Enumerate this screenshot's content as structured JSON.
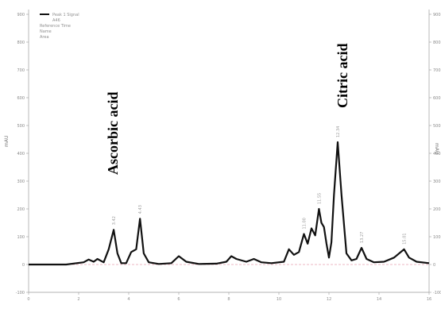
{
  "chart_data": {
    "type": "line",
    "ylabel_left": "mAU",
    "ylabel_right": "mAU",
    "xlim": [
      0,
      16
    ],
    "ylim": [
      -100,
      900
    ],
    "x_ticks": [
      "0",
      "2",
      "4",
      "6",
      "8",
      "10",
      "12",
      "14",
      "16"
    ],
    "y_ticks": [
      "-100",
      "0",
      "100",
      "200",
      "300",
      "400",
      "500",
      "600",
      "700",
      "800",
      "900"
    ],
    "legend": {
      "position": "top-left",
      "entries": [
        "Peak 1 Signal",
        "A46",
        "Reference Time",
        "Name",
        "Area"
      ]
    },
    "annotations": [
      {
        "text": "Ascorbic acid",
        "x": 3.4,
        "y": 510
      },
      {
        "text": "Citric acid",
        "x": 12.5,
        "y": 680
      }
    ],
    "series": [
      {
        "color": "#111111",
        "x": [
          0,
          1.5,
          2.2,
          2.4,
          2.6,
          2.75,
          3.0,
          3.2,
          3.4,
          3.55,
          3.7,
          3.9,
          4.1,
          4.3,
          4.45,
          4.6,
          4.8,
          5.2,
          5.7,
          6.0,
          6.3,
          6.8,
          7.5,
          7.9,
          8.1,
          8.3,
          8.7,
          9.0,
          9.3,
          9.7,
          10.2,
          10.4,
          10.6,
          10.8,
          11.0,
          11.15,
          11.3,
          11.45,
          11.6,
          11.7,
          11.8,
          11.9,
          12.0,
          12.1,
          12.2,
          12.35,
          12.5,
          12.7,
          12.9,
          13.1,
          13.3,
          13.5,
          13.8,
          14.2,
          14.6,
          15.0,
          15.2,
          15.5,
          16.0
        ],
        "y": [
          0,
          0,
          8,
          18,
          10,
          20,
          8,
          55,
          125,
          40,
          5,
          5,
          45,
          55,
          165,
          40,
          8,
          2,
          5,
          30,
          10,
          2,
          3,
          10,
          30,
          20,
          10,
          20,
          8,
          5,
          10,
          55,
          35,
          45,
          110,
          75,
          130,
          105,
          200,
          150,
          135,
          75,
          25,
          80,
          250,
          440,
          250,
          40,
          15,
          20,
          60,
          20,
          8,
          10,
          25,
          55,
          25,
          10,
          5
        ]
      }
    ],
    "peak_labels": [
      {
        "x": 3.4,
        "text": "3.42"
      },
      {
        "x": 4.45,
        "text": "4.43"
      },
      {
        "x": 11.0,
        "text": "11.00"
      },
      {
        "x": 11.6,
        "text": "11.55"
      },
      {
        "x": 12.35,
        "text": "12.34"
      },
      {
        "x": 13.3,
        "text": "13.27"
      },
      {
        "x": 15.0,
        "text": "15.01"
      }
    ]
  }
}
